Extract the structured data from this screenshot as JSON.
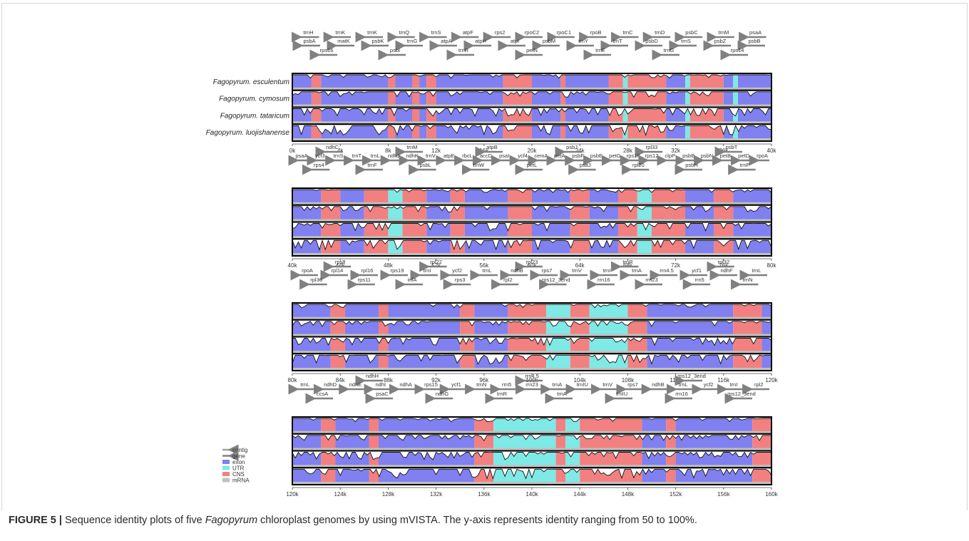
{
  "figure": {
    "label": "FIGURE 5 |",
    "caption_pre": " Sequence identity plots of five ",
    "caption_italic": "Fagopyrum",
    "caption_post": " chloroplast genomes by using mVISTA. The y-axis represents identity ranging from 50 to 100%."
  },
  "colors": {
    "exon": "#8080f0",
    "utr": "#7fe9e6",
    "cns": "#f28080",
    "mrna": "#c0c0c0",
    "contig": "#a0a0a0",
    "gene": "#808080"
  },
  "chart_data": {
    "type": "area",
    "tool": "mVISTA",
    "y_range": [
      50,
      100
    ],
    "species": [
      "Fagopyrum. esculentum",
      "Fagopyrum. cymosum",
      "Fagopyrum. tataricum",
      "Fagopyrum. luojishanense"
    ],
    "legend": [
      "contig",
      "gene",
      "exon",
      "UTR",
      "CNS",
      "mRNA"
    ],
    "panels": [
      {
        "ticks": [
          "0k",
          "4k",
          "8k",
          "12k",
          "16k",
          "20k",
          "24k",
          "28k",
          "32k",
          "36k",
          "40k"
        ],
        "genes_top": [
          "trnH",
          "trnK",
          "trnK",
          "trnQ",
          "trnS",
          "atpF",
          "rps2",
          "rpoC2",
          "rpoC1",
          "rpoB",
          "trnC",
          "trnD",
          "psbC",
          "trnM",
          "psaA"
        ],
        "genes_mid": [
          "psbA",
          "matK",
          "psbK",
          "trnG",
          "atpA",
          "atpH",
          "atpI",
          "psbM",
          "trnY",
          "trnT",
          "psbD",
          "trnS",
          "psbZ",
          "psbB"
        ],
        "genes_low": [
          "rps16",
          "psbI",
          "trnR",
          "petN",
          "trnE",
          "trnG",
          "rps14"
        ]
      },
      {
        "ticks": [
          "40k",
          "44k",
          "48k",
          "52k",
          "56k",
          "60k",
          "64k",
          "68k",
          "72k",
          "76k",
          "80k"
        ],
        "genes_top": [
          "ndhC",
          "trnM",
          "atpB",
          "psbJ",
          "rpl33",
          "psbT"
        ],
        "genes_mid": [
          "psaA",
          "ycf3",
          "trnS",
          "trnT",
          "trnL",
          "ndhJ",
          "ndhK",
          "trnV",
          "atpE",
          "rbcL",
          "accD",
          "psaI",
          "ycf4",
          "cemA",
          "petA",
          "psbF",
          "psbE",
          "petG",
          "rps18",
          "rps12",
          "clpP",
          "psbB",
          "psbN",
          "petB",
          "petD",
          "rpoA"
        ],
        "genes_low": [
          "rps4",
          "trnF",
          "psbL",
          "trnW",
          "petL",
          "psaJ",
          "rpl20",
          "psbH",
          "trnP"
        ]
      },
      {
        "ticks": [
          "80k",
          "84k",
          "88k",
          "92k",
          "96k",
          "100k",
          "104k",
          "108k",
          "112k",
          "116k",
          "120k"
        ],
        "genes_top": [
          "rps8",
          "rpl22",
          "rpl23",
          "trnR",
          "rpl32"
        ],
        "genes_mid": [
          "rpoA",
          "rpl14",
          "rpl16",
          "rps19",
          "trnI",
          "ycf2",
          "trnL",
          "ndhB",
          "rps7",
          "trnV",
          "trnI",
          "trnA",
          "rrn4.5",
          "ycf1",
          "ndhF",
          "trnL"
        ],
        "genes_low": [
          "rpl36",
          "rps11",
          "infA",
          "rps3",
          "rpl2",
          "rps12_3end",
          "rrn16",
          "rrn23",
          "rrn5",
          "trnN"
        ]
      },
      {
        "ticks": [
          "120k",
          "124k",
          "128k",
          "132k",
          "136k",
          "140k",
          "144k",
          "148k",
          "152k",
          "156k",
          "160k"
        ],
        "genes_top": [
          "ndhH",
          "rrn4.5",
          "rps12_3end"
        ],
        "genes_mid": [
          "trnL",
          "ndhD",
          "ndhE",
          "ndhI",
          "ndhA",
          "rps15",
          "ycf1",
          "trnN",
          "rrn5",
          "rrn23",
          "trnA",
          "trnIU",
          "trnV",
          "rps7",
          "ndhB",
          "trnL",
          "ycf2",
          "trnI",
          "rpl2"
        ],
        "genes_low": [
          "ccsA",
          "psaC",
          "ndhG",
          "trnR",
          "trnA",
          "trnIU",
          "rrn16",
          "rps12_3end"
        ]
      }
    ]
  }
}
